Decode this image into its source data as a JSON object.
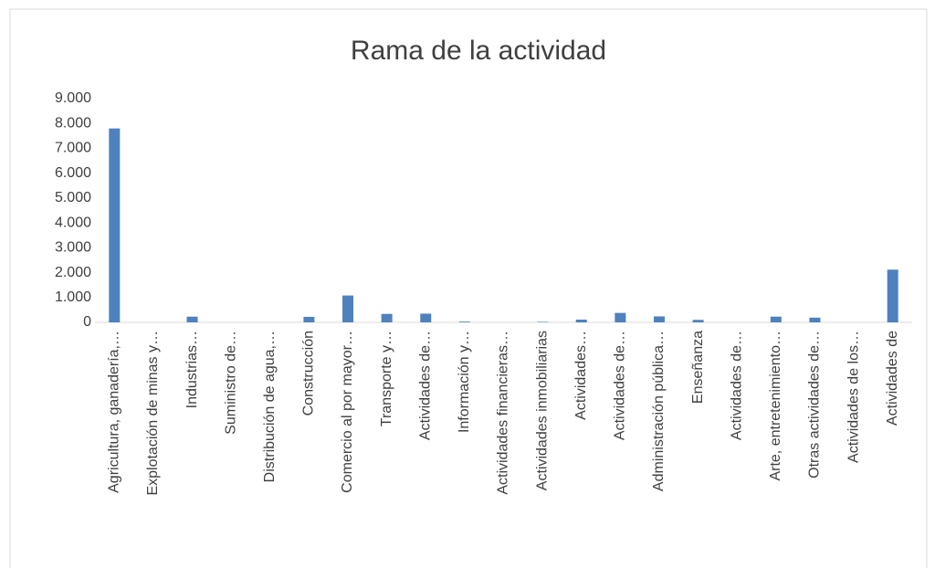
{
  "chart_data": {
    "type": "bar",
    "title": "Rama de la actividad",
    "categories": [
      "Agricultura, ganadería,…",
      "Explotación de minas y…",
      "Industrias…",
      "Suministro de…",
      "Distribución de agua,…",
      "Construcción",
      "Comercio al por mayor…",
      "Transporte y…",
      "Actividades de…",
      "Información y…",
      "Actividades financieras…",
      "Actividades inmobiliarias",
      "Actividades…",
      "Actividades de…",
      "Administración pública…",
      "Enseñanza",
      "Actividades de…",
      "Arte, entretenimiento…",
      "Otras actividades de…",
      "Actividades de los…",
      "Actividades de"
    ],
    "values": [
      7800,
      0,
      230,
      0,
      0,
      220,
      1080,
      340,
      350,
      30,
      0,
      20,
      110,
      380,
      240,
      100,
      0,
      230,
      190,
      0,
      2120
    ],
    "color": "#4f81bd",
    "ylim": [
      0,
      9000
    ],
    "yticks": [
      0,
      {
        "value": 1000,
        "label": "1.000"
      },
      {
        "value": 2000,
        "label": "2.000"
      },
      {
        "value": 3000,
        "label": "3.000"
      },
      {
        "value": 4000,
        "label": "4.000"
      },
      {
        "value": 5000,
        "label": "5.000"
      },
      {
        "value": 6000,
        "label": "6.000"
      },
      {
        "value": 7000,
        "label": "7.000"
      },
      {
        "value": 8000,
        "label": "8.000"
      },
      {
        "value": 9000,
        "label": "9.000"
      }
    ],
    "grid": false
  }
}
